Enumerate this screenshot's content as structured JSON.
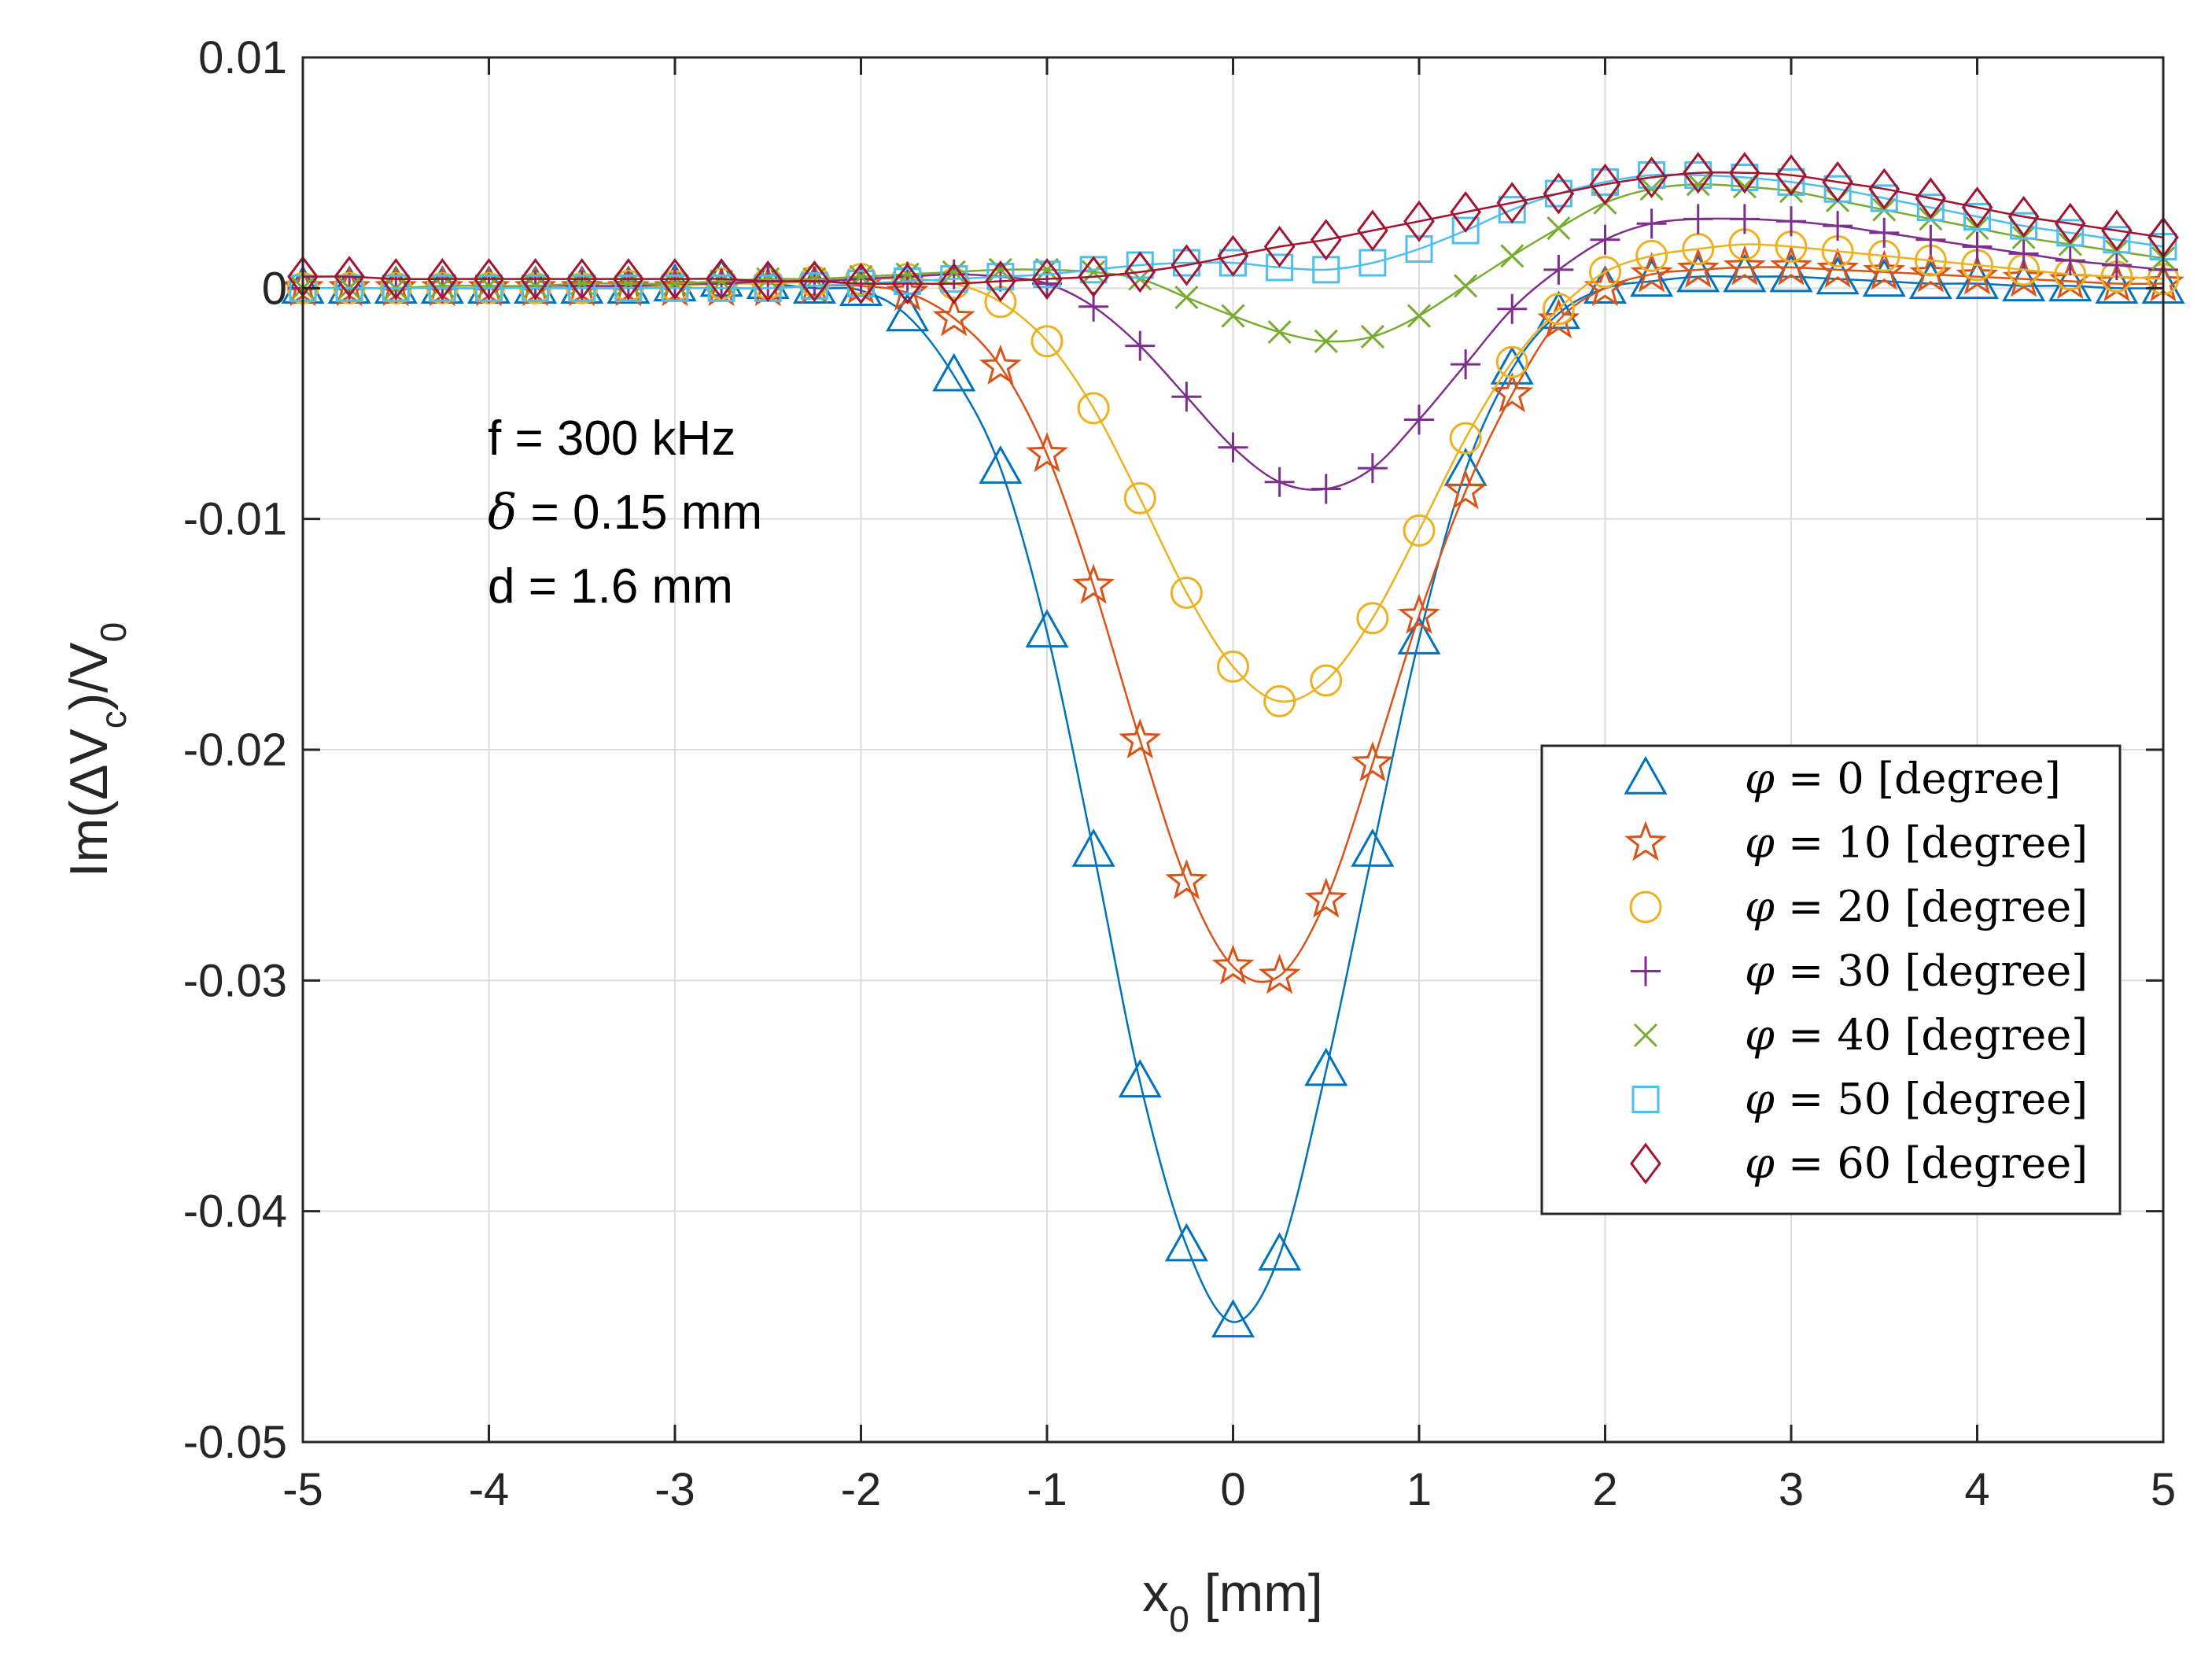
{
  "chart_data": {
    "type": "line",
    "title": "",
    "xlabel": {
      "main": "x",
      "sub": "0",
      "rest": " [mm]"
    },
    "ylabel": {
      "p1": "Im(",
      "delta": "Δ",
      "p2": "V",
      "sub1": "c",
      "p3": ")/V",
      "sub2": "0"
    },
    "xlim": [
      -5,
      5
    ],
    "ylim": [
      -0.05,
      0.01
    ],
    "xticks": [
      -5,
      -4,
      -3,
      -2,
      -1,
      0,
      1,
      2,
      3,
      4,
      5
    ],
    "xtick_labels": [
      "-5",
      "-4",
      "-3",
      "-2",
      "-1",
      "0",
      "1",
      "2",
      "3",
      "4",
      "5"
    ],
    "yticks": [
      -0.05,
      -0.04,
      -0.03,
      -0.02,
      -0.01,
      0,
      0.01
    ],
    "ytick_labels": [
      "-0.05",
      "-0.04",
      "-0.03",
      "-0.02",
      "-0.01",
      "0",
      "0.01"
    ],
    "grid": true,
    "legend_position": "lower-right",
    "annotations": {
      "line1": "f = 300 kHz",
      "line2_symbol": "δ",
      "line2_rest": " = 0.15 mm",
      "line3": "d = 1.6 mm"
    },
    "x": [
      -5,
      -4.75,
      -4.5,
      -4.25,
      -4,
      -3.75,
      -3.5,
      -3.25,
      -3,
      -2.75,
      -2.5,
      -2.25,
      -2,
      -1.75,
      -1.5,
      -1.25,
      -1,
      -0.75,
      -0.5,
      -0.25,
      0,
      0.25,
      0.5,
      0.75,
      1,
      1.25,
      1.5,
      1.75,
      2,
      2.25,
      2.5,
      2.75,
      3,
      3.25,
      3.5,
      3.75,
      4,
      4.25,
      4.5,
      4.75,
      5
    ],
    "series": [
      {
        "name": "φ = 0 [degree]",
        "phi": "φ",
        "label": " = 0 [degree]",
        "color": "#0072BD",
        "marker": "triangle",
        "values": [
          0,
          0,
          0,
          0,
          0,
          0,
          0,
          0,
          0.0001,
          0.0003,
          0.0002,
          0,
          -0.0001,
          -0.0012,
          -0.0038,
          -0.0078,
          -0.0149,
          -0.0244,
          -0.0344,
          -0.0415,
          -0.0448,
          -0.0419,
          -0.0339,
          -0.0244,
          -0.0152,
          -0.0079,
          -0.0035,
          -0.0011,
          0,
          0.0003,
          0.0005,
          0.0005,
          0.0005,
          0.0004,
          0.0003,
          0.0002,
          0.0002,
          0.0001,
          0.0001,
          0,
          0
        ]
      },
      {
        "name": "φ = 10 [degree]",
        "phi": "φ",
        "label": " = 10 [degree]",
        "color": "#D95319",
        "marker": "star",
        "values": [
          0,
          0,
          0,
          0,
          0,
          0,
          0,
          0,
          0,
          0,
          0,
          0.0001,
          0.0001,
          -0.0002,
          -0.0013,
          -0.0034,
          -0.0072,
          -0.0129,
          -0.0196,
          -0.0257,
          -0.0294,
          -0.0298,
          -0.0265,
          -0.0206,
          -0.0142,
          -0.0088,
          -0.0046,
          -0.0014,
          0,
          0.0006,
          0.0008,
          0.0009,
          0.0009,
          0.0008,
          0.0007,
          0.0006,
          0.0005,
          0.0004,
          0.0003,
          0.0002,
          0.0002
        ]
      },
      {
        "name": "φ = 20 [degree]",
        "phi": "φ",
        "label": " = 20 [degree]",
        "color": "#EDB120",
        "marker": "circle",
        "values": [
          0,
          0,
          0,
          0,
          0,
          0,
          0,
          0.0001,
          0.0001,
          0.0002,
          0.0002,
          0.0003,
          0.0004,
          0.0004,
          0.0002,
          -0.0006,
          -0.0023,
          -0.0052,
          -0.0091,
          -0.0132,
          -0.0164,
          -0.0179,
          -0.017,
          -0.0143,
          -0.0105,
          -0.0065,
          -0.0032,
          -0.0009,
          0.0007,
          0.0014,
          0.0017,
          0.0019,
          0.0018,
          0.0016,
          0.0014,
          0.0012,
          0.001,
          0.0008,
          0.0006,
          0.0005,
          0.0004
        ]
      },
      {
        "name": "φ = 30 [degree]",
        "phi": "φ",
        "label": " = 30 [degree]",
        "color": "#7E2F8E",
        "marker": "plus",
        "values": [
          0,
          0,
          0,
          0,
          0,
          0.0001,
          0.0001,
          0.0001,
          0.0002,
          0.0002,
          0.0003,
          0.0003,
          0.0004,
          0.0005,
          0.0006,
          0.0005,
          0.0002,
          -0.0008,
          -0.0025,
          -0.0047,
          -0.0069,
          -0.0084,
          -0.0087,
          -0.0078,
          -0.0057,
          -0.0033,
          -0.0009,
          0.0008,
          0.0021,
          0.0028,
          0.003,
          0.003,
          0.0029,
          0.0027,
          0.0024,
          0.0021,
          0.0018,
          0.0015,
          0.0012,
          0.001,
          0.0008
        ]
      },
      {
        "name": "φ = 40 [degree]",
        "phi": "φ",
        "label": " = 40 [degree]",
        "color": "#77AC30",
        "marker": "x",
        "values": [
          0,
          0,
          0,
          0.0001,
          0.0001,
          0.0001,
          0.0002,
          0.0002,
          0.0002,
          0.0003,
          0.0004,
          0.0004,
          0.0005,
          0.0006,
          0.0007,
          0.0008,
          0.0008,
          0.0007,
          0.0004,
          -0.0004,
          -0.0012,
          -0.0019,
          -0.0023,
          -0.0021,
          -0.0012,
          0.0001,
          0.0014,
          0.0026,
          0.0037,
          0.0043,
          0.0045,
          0.0044,
          0.0042,
          0.0038,
          0.0034,
          0.003,
          0.0026,
          0.0022,
          0.0019,
          0.0016,
          0.0013
        ]
      },
      {
        "name": "φ = 50 [degree]",
        "phi": "φ",
        "label": " = 50 [degree]",
        "color": "#4DBEEE",
        "marker": "square",
        "values": [
          0,
          0,
          0,
          0,
          0,
          0,
          0,
          0,
          0,
          0,
          0,
          0.0001,
          0.0002,
          0.0003,
          0.0004,
          0.0005,
          0.0006,
          0.0008,
          0.001,
          0.0011,
          0.0011,
          0.0009,
          0.0008,
          0.0011,
          0.0017,
          0.0025,
          0.0034,
          0.0041,
          0.0046,
          0.0049,
          0.0049,
          0.0048,
          0.0046,
          0.0043,
          0.0039,
          0.0035,
          0.0031,
          0.0027,
          0.0024,
          0.0021,
          0.0018
        ]
      },
      {
        "name": "φ = 60 [degree]",
        "phi": "φ",
        "label": " = 60 [degree]",
        "color": "#A2142F",
        "marker": "diamond",
        "values": [
          0.0005,
          0.0005,
          0.0004,
          0.0004,
          0.0004,
          0.0004,
          0.0004,
          0.0004,
          0.0004,
          0.0004,
          0.0003,
          0.0003,
          0.0002,
          0.0002,
          0.0002,
          0.0003,
          0.0004,
          0.0005,
          0.0007,
          0.001,
          0.0014,
          0.0018,
          0.0021,
          0.0025,
          0.0029,
          0.0033,
          0.0037,
          0.0041,
          0.0045,
          0.0048,
          0.005,
          0.005,
          0.0049,
          0.0046,
          0.0043,
          0.0039,
          0.0035,
          0.0031,
          0.0028,
          0.0025,
          0.0022
        ]
      }
    ]
  }
}
